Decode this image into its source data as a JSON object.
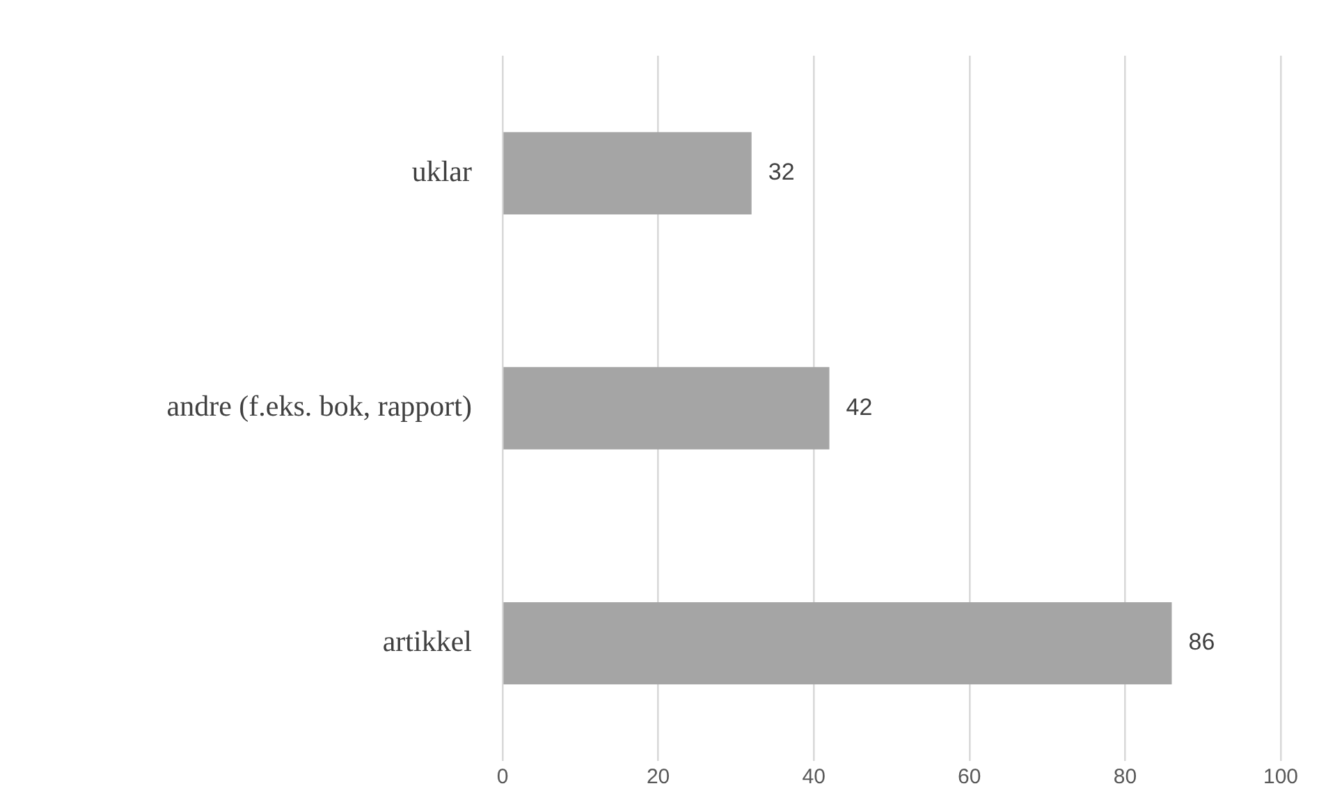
{
  "chart_data": {
    "type": "bar",
    "orientation": "horizontal",
    "categories": [
      "uklar",
      "andre (f.eks. bok, rapport)",
      "artikkel"
    ],
    "values": [
      32,
      42,
      86
    ],
    "color": "#a5a5a5",
    "xlim": [
      0,
      100
    ],
    "xticks": [
      0,
      20,
      40,
      60,
      80,
      100
    ],
    "grid": "x",
    "legend": false,
    "data_labels": true
  }
}
